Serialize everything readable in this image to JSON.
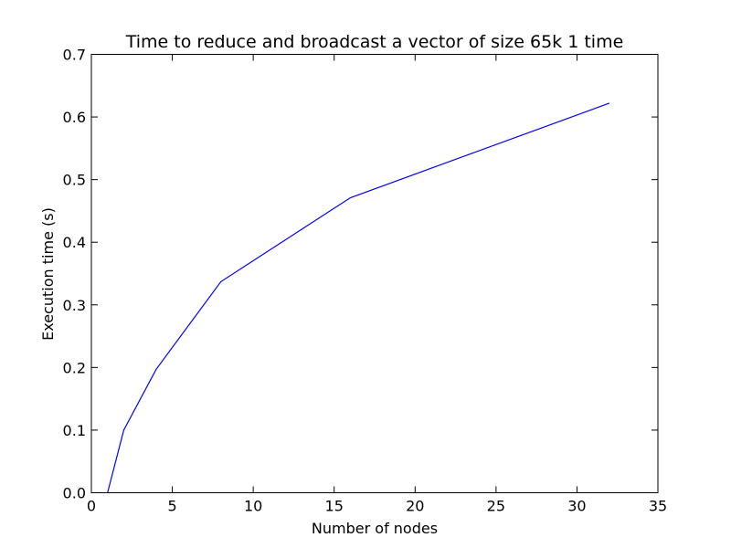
{
  "chart_data": {
    "type": "line",
    "title": "Time to reduce and broadcast a vector of size 65k 1 time",
    "xlabel": "Number of nodes",
    "ylabel": "Execution time (s)",
    "xlim": [
      0,
      35
    ],
    "ylim": [
      0.0,
      0.7
    ],
    "xticks": [
      0,
      5,
      10,
      15,
      20,
      25,
      30,
      35
    ],
    "xtick_labels": [
      "0",
      "5",
      "10",
      "15",
      "20",
      "25",
      "30",
      "35"
    ],
    "yticks": [
      0.0,
      0.1,
      0.2,
      0.3,
      0.4,
      0.5,
      0.6,
      0.7
    ],
    "ytick_labels": [
      "0.0",
      "0.1",
      "0.2",
      "0.3",
      "0.4",
      "0.5",
      "0.6",
      "0.7"
    ],
    "grid": false,
    "series": [
      {
        "color": "#0000ff",
        "x": [
          1,
          2,
          4,
          8,
          16,
          32
        ],
        "y": [
          0.0,
          0.1,
          0.197,
          0.337,
          0.471,
          0.622
        ]
      }
    ]
  }
}
